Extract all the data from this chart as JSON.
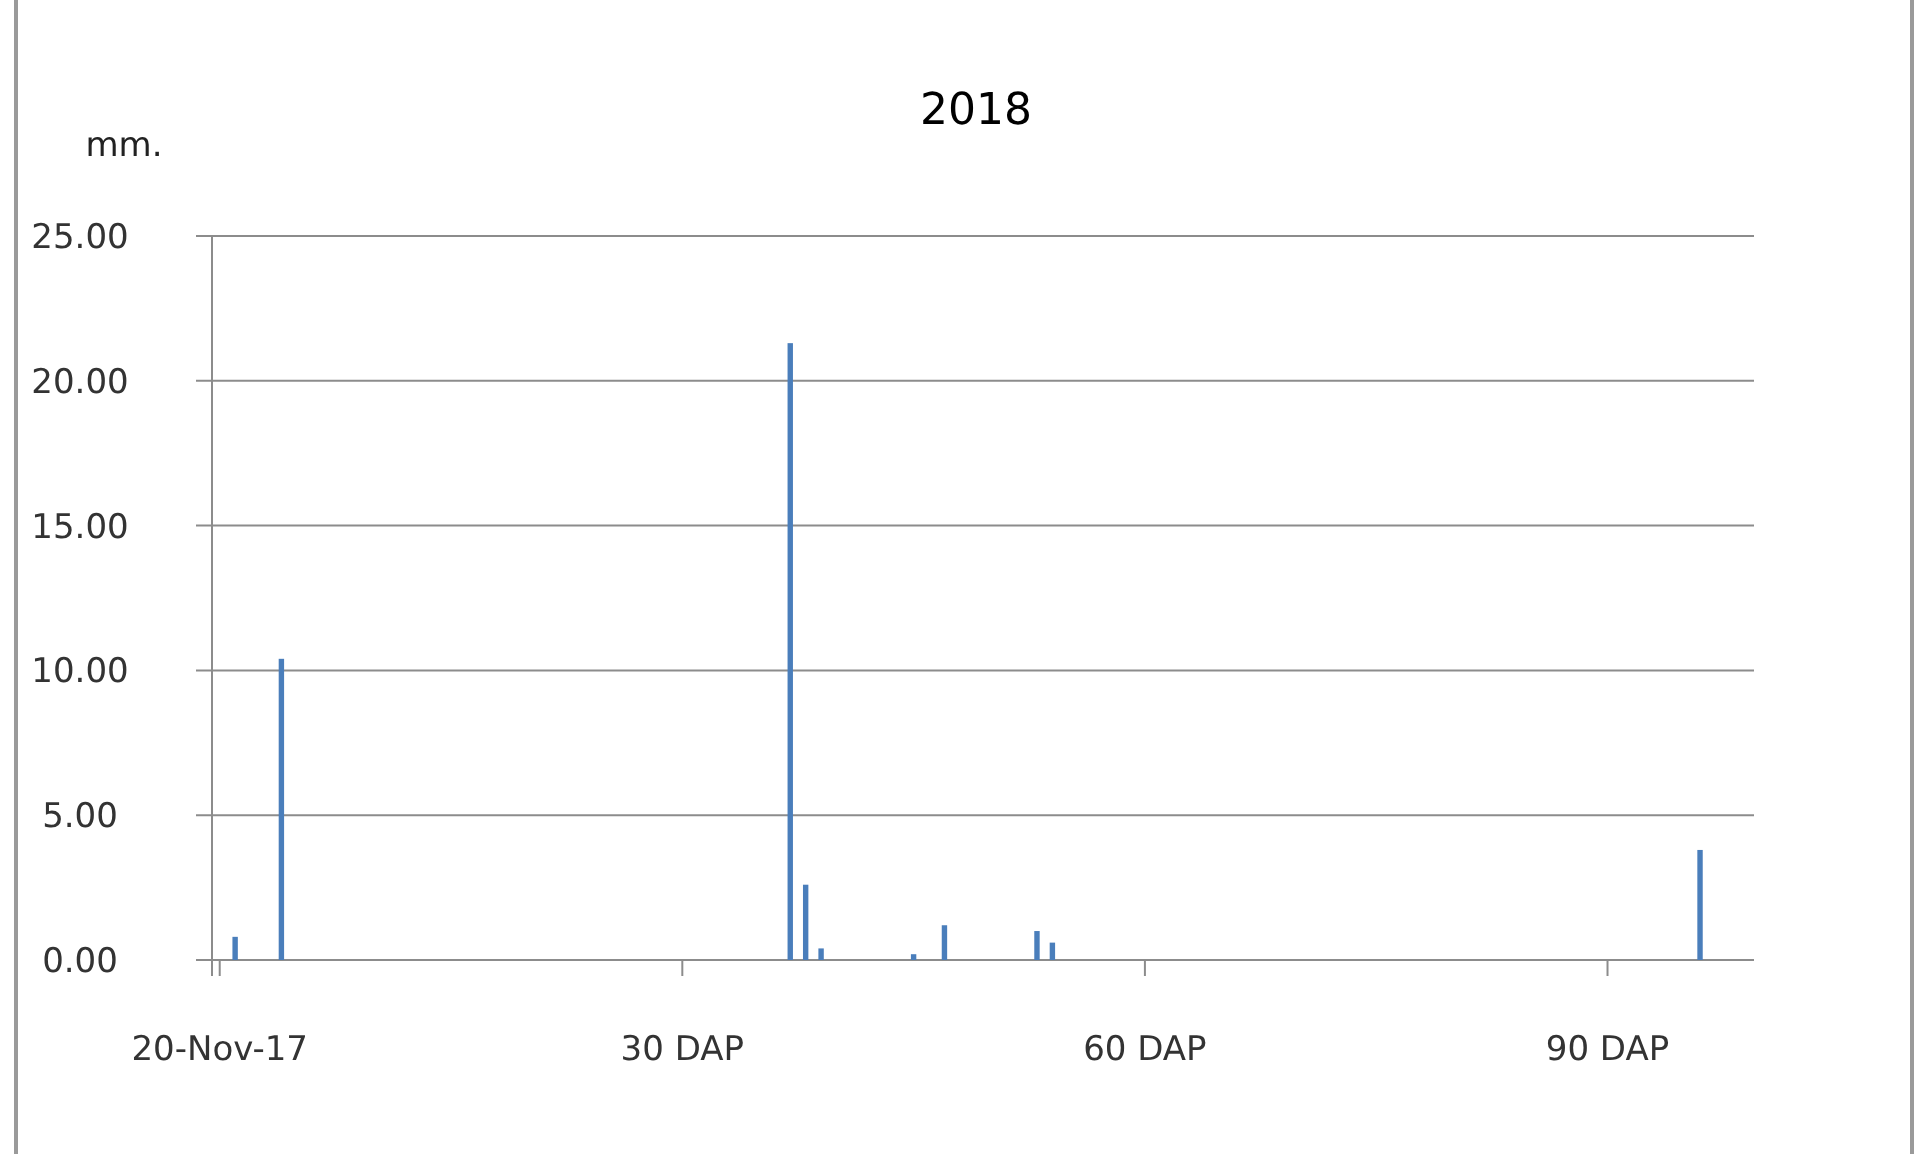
{
  "chart_data": {
    "type": "bar",
    "title": "2018",
    "ylabel": "mm.",
    "categories": [
      "20-Nov-17",
      null,
      null,
      null,
      null,
      null,
      null,
      null,
      null,
      null,
      null,
      null,
      null,
      null,
      null,
      null,
      null,
      null,
      null,
      null,
      null,
      null,
      null,
      null,
      null,
      null,
      null,
      null,
      null,
      null,
      "30 DAP",
      null,
      null,
      null,
      null,
      null,
      null,
      null,
      null,
      null,
      null,
      null,
      null,
      null,
      null,
      null,
      null,
      null,
      null,
      null,
      null,
      null,
      null,
      null,
      null,
      null,
      null,
      null,
      null,
      null,
      "60 DAP",
      null,
      null,
      null,
      null,
      null,
      null,
      null,
      null,
      null,
      null,
      null,
      null,
      null,
      null,
      null,
      null,
      null,
      null,
      null,
      null,
      null,
      null,
      null,
      null,
      null,
      null,
      null,
      null,
      null,
      "90 DAP",
      null,
      null,
      null,
      null,
      null,
      null,
      null,
      null,
      null
    ],
    "values": [
      0,
      0.8,
      0,
      0,
      10.4,
      0,
      0,
      0,
      0,
      0,
      0,
      0,
      0,
      0,
      0,
      0,
      0,
      0,
      0,
      0,
      0,
      0,
      0,
      0,
      0,
      0,
      0,
      0,
      0,
      0,
      0,
      0,
      0,
      0,
      0,
      0,
      0,
      21.3,
      2.6,
      0.4,
      0,
      0,
      0,
      0,
      0,
      0.2,
      0,
      1.2,
      0,
      0,
      0,
      0,
      0,
      1.0,
      0.6,
      0,
      0,
      0,
      0,
      0,
      0,
      0,
      0,
      0,
      0,
      0,
      0,
      0,
      0,
      0,
      0,
      0,
      0,
      0,
      0,
      0,
      0,
      0,
      0,
      0,
      0,
      0,
      0,
      0,
      0,
      0,
      0,
      0,
      0,
      0,
      0,
      0,
      0,
      0,
      0,
      0,
      3.8,
      0,
      0,
      0
    ],
    "color": "#4a7ebb",
    "ylim": [
      0,
      25
    ],
    "yticks": [
      {
        "value": 0,
        "label": "0.00"
      },
      {
        "value": 5,
        "label": "5.00"
      },
      {
        "value": 10,
        "label": "10.00"
      },
      {
        "value": 15,
        "label": "15.00"
      },
      {
        "value": 20,
        "label": "20.00"
      },
      {
        "value": 25,
        "label": "25.00"
      }
    ],
    "grid": "y"
  }
}
